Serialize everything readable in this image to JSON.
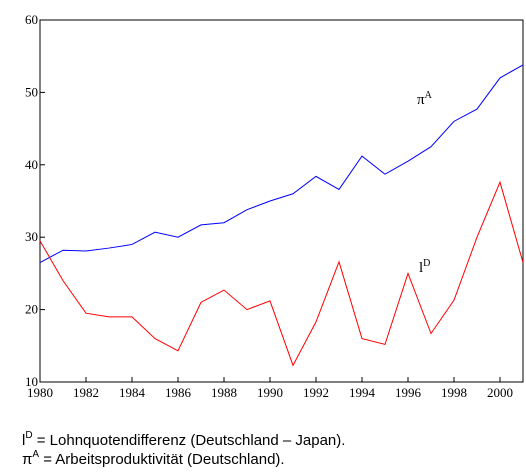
{
  "chart_data": {
    "type": "line",
    "x": [
      1980,
      1981,
      1982,
      1983,
      1984,
      1985,
      1986,
      1987,
      1988,
      1989,
      1990,
      1991,
      1992,
      1993,
      1994,
      1995,
      1996,
      1997,
      1998,
      1999,
      2000,
      2001
    ],
    "series": [
      {
        "color": "#0000ff",
        "values": [
          26.5,
          28.2,
          28.1,
          28.5,
          29.0,
          30.7,
          30.0,
          31.7,
          32.0,
          33.8,
          35.0,
          36.0,
          38.4,
          36.6,
          41.2,
          38.7,
          40.5,
          42.5,
          46.0,
          47.7,
          52.0,
          53.8
        ]
      },
      {
        "color": "#ff0000",
        "values": [
          29.5,
          24.0,
          19.5,
          19.0,
          19.0,
          16.0,
          14.3,
          21.0,
          22.7,
          20.0,
          21.2,
          12.3,
          18.3,
          26.6,
          16.0,
          15.2,
          25.0,
          16.7,
          21.3,
          30.0,
          37.6,
          26.5
        ]
      }
    ],
    "xlim": [
      1980,
      2001
    ],
    "xticks": [
      1980,
      1982,
      1984,
      1986,
      1988,
      1990,
      1992,
      1994,
      1996,
      1998,
      2000
    ],
    "ylim": [
      10,
      60
    ],
    "yticks": [
      10,
      20,
      30,
      40,
      50,
      60
    ],
    "annotations": [
      {
        "text": "π",
        "sup": "A"
      },
      {
        "text": "l",
        "sup": "D"
      }
    ],
    "footnotes": [
      {
        "symbol": "l",
        "sup": "D",
        "text": " = Lohnquotendifferenz (Deutschland – Japan)."
      },
      {
        "symbol": "π",
        "sup": "A",
        "text": " = Arbeitsproduktivität (Deutschland)."
      }
    ]
  }
}
